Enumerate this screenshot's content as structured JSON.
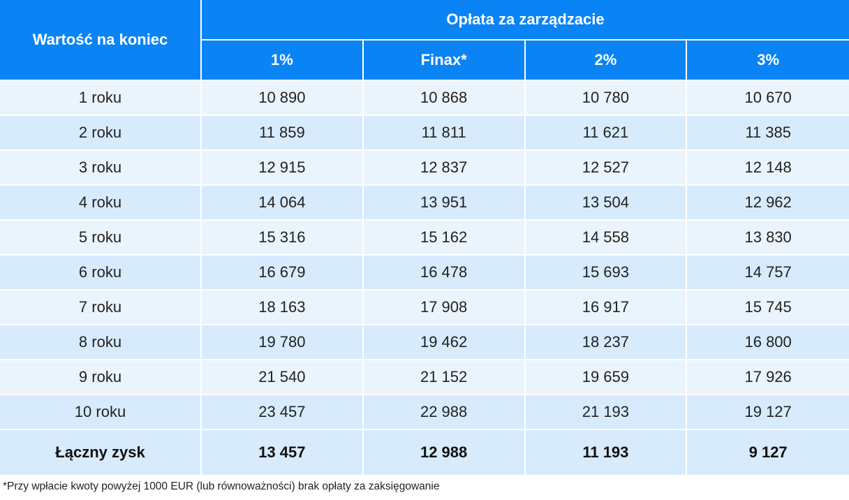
{
  "chart_data": {
    "type": "table",
    "row_header_label": "Wartość na koniec",
    "group_header": "Opłata za zarządzacie",
    "columns": [
      "1%",
      "Finax*",
      "2%",
      "3%"
    ],
    "rows": [
      {
        "label": "1 roku",
        "values": [
          "10 890",
          "10 868",
          "10 780",
          "10 670"
        ]
      },
      {
        "label": "2 roku",
        "values": [
          "11 859",
          "11 811",
          "11 621",
          "11 385"
        ]
      },
      {
        "label": "3 roku",
        "values": [
          "12 915",
          "12 837",
          "12 527",
          "12 148"
        ]
      },
      {
        "label": "4 roku",
        "values": [
          "14 064",
          "13 951",
          "13 504",
          "12 962"
        ]
      },
      {
        "label": "5 roku",
        "values": [
          "15 316",
          "15 162",
          "14 558",
          "13 830"
        ]
      },
      {
        "label": "6 roku",
        "values": [
          "16 679",
          "16 478",
          "15 693",
          "14 757"
        ]
      },
      {
        "label": "7 roku",
        "values": [
          "18 163",
          "17 908",
          "16 917",
          "15 745"
        ]
      },
      {
        "label": "8 roku",
        "values": [
          "19 780",
          "19 462",
          "18 237",
          "16 800"
        ]
      },
      {
        "label": "9 roku",
        "values": [
          "21 540",
          "21 152",
          "19 659",
          "17 926"
        ]
      },
      {
        "label": "10 roku",
        "values": [
          "23 457",
          "22 988",
          "21 193",
          "19 127"
        ]
      }
    ],
    "total": {
      "label": "Łączny zysk",
      "values": [
        "13 457",
        "12 988",
        "11 193",
        "9 127"
      ]
    },
    "footnote": "*Przy wpłacie kwoty powyżej 1000 EUR (lub równoważności) brak opłaty za zaksięgowanie"
  },
  "colors": {
    "header_bg": "#0a84f5",
    "row_light": "#eaf4fd",
    "row_dark": "#d7ebfc"
  }
}
